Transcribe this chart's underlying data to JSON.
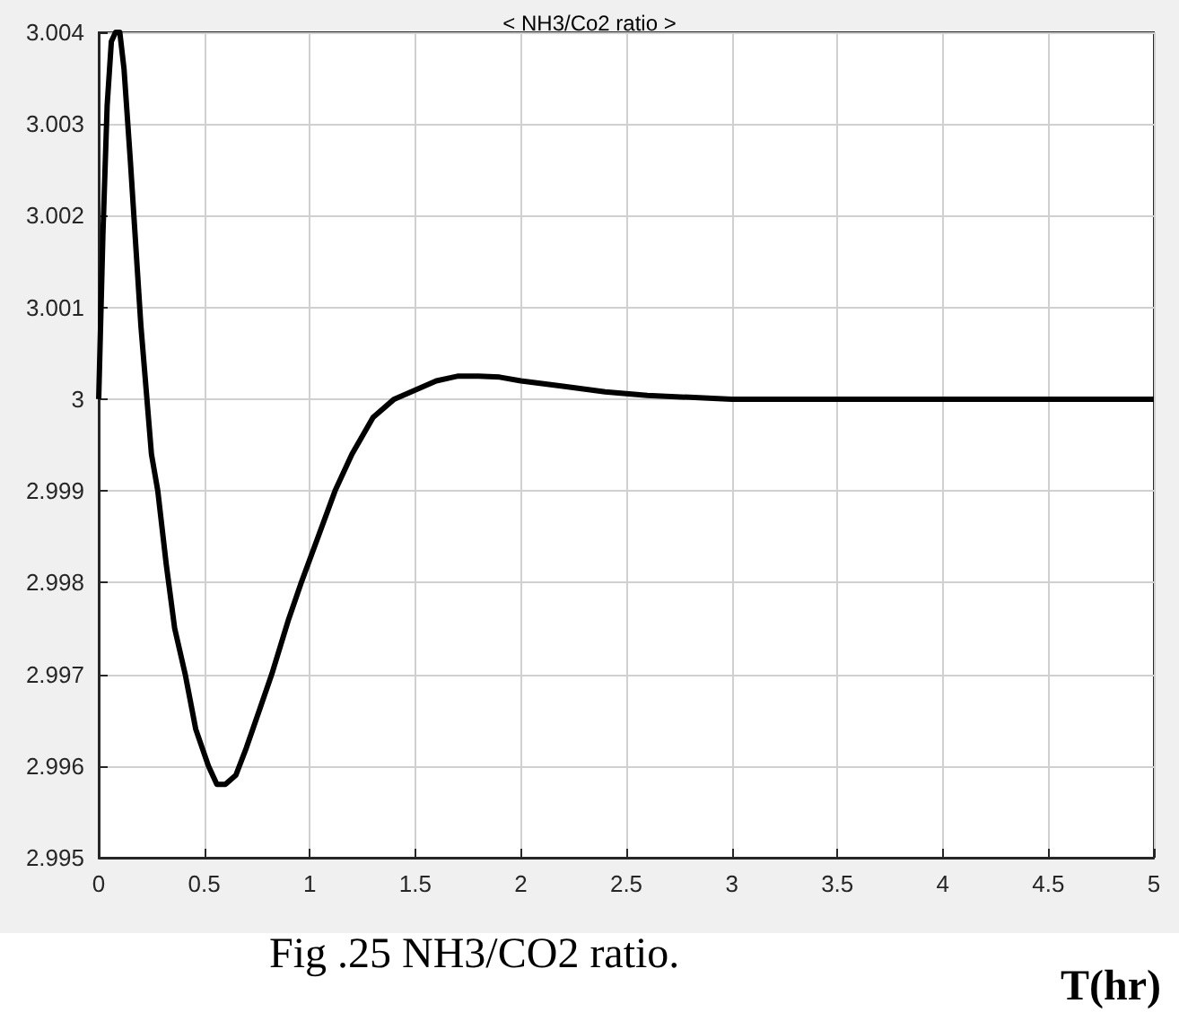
{
  "chart_data": {
    "type": "line",
    "title": "< NH3/Co2 ratio >",
    "xlabel": "T(hr)",
    "annotations": [
      "Fig .25 NH3/CO2 ratio."
    ],
    "series": [
      {
        "color": "#000000",
        "x": [
          0,
          0.02,
          0.04,
          0.06,
          0.08,
          0.1,
          0.12,
          0.15,
          0.2,
          0.25,
          0.28,
          0.32,
          0.36,
          0.41,
          0.46,
          0.52,
          0.56,
          0.6,
          0.65,
          0.7,
          0.76,
          0.82,
          0.9,
          0.96,
          1.04,
          1.12,
          1.2,
          1.3,
          1.4,
          1.5,
          1.6,
          1.7,
          1.8,
          1.9,
          2,
          2.2,
          2.4,
          2.6,
          2.8,
          3,
          3.5,
          4,
          4.5,
          5
        ],
        "values": [
          3.0,
          3.0018,
          3.0032,
          3.0039,
          3.004,
          3.004,
          3.0036,
          3.0026,
          3.0008,
          2.9994,
          2.999,
          2.9982,
          2.9975,
          2.997,
          2.9964,
          2.996,
          2.9958,
          2.9958,
          2.9959,
          2.9962,
          2.9966,
          2.997,
          2.9976,
          2.998,
          2.9985,
          2.999,
          2.9994,
          2.9998,
          3.0,
          3.0001,
          3.0002,
          3.00025,
          3.00025,
          3.00024,
          3.0002,
          3.00014,
          3.00008,
          3.00004,
          3.00002,
          3.0,
          3.0,
          3.0,
          3.0,
          3.0
        ]
      }
    ],
    "xlim": [
      0,
      5
    ],
    "xticks": [
      0,
      0.5,
      1,
      1.5,
      2,
      2.5,
      3,
      3.5,
      4,
      4.5,
      5
    ],
    "ylim": [
      2.995,
      3.004
    ],
    "yticks": [
      2.995,
      2.996,
      2.997,
      2.998,
      2.999,
      3,
      3.001,
      3.002,
      3.003,
      3.004
    ],
    "grid": true,
    "marker": "none",
    "line_style": "solid"
  }
}
